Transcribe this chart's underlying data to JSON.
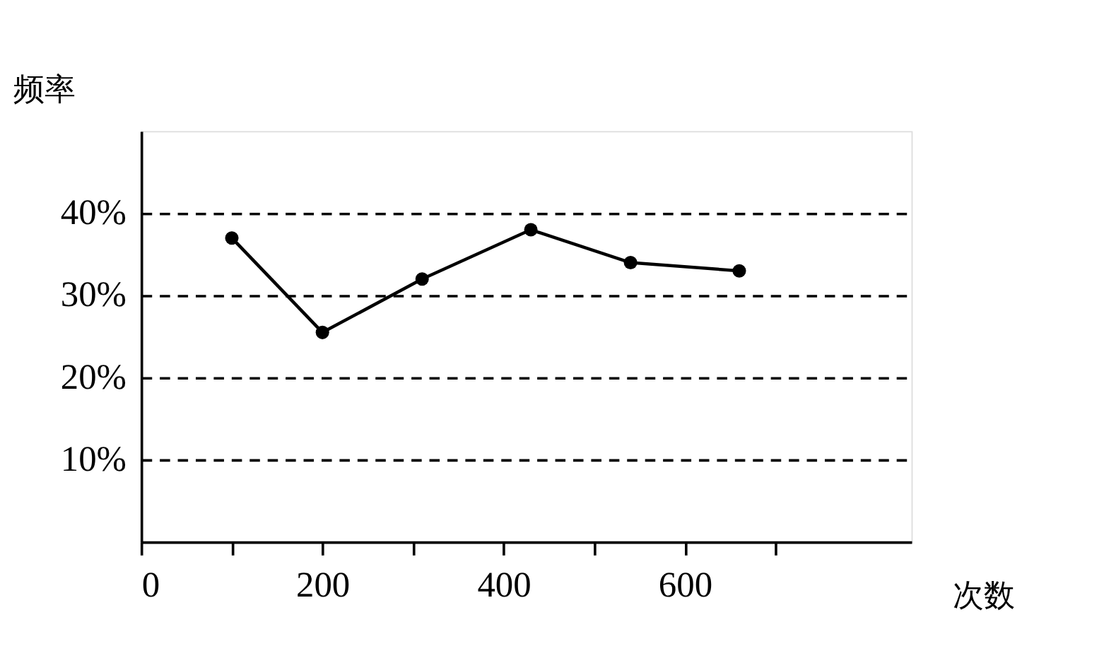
{
  "chart_data": {
    "type": "line",
    "xlabel": "次数",
    "ylabel": "频率",
    "x": [
      100,
      200,
      310,
      430,
      540,
      660
    ],
    "series": [
      {
        "color": "#000000",
        "values": [
          37,
          25.5,
          32,
          38,
          34,
          33
        ]
      }
    ],
    "xlim": [
      0,
      850
    ],
    "ylim": [
      0,
      50
    ],
    "xticks": [
      {
        "value": 0,
        "label": "0"
      },
      {
        "value": 100,
        "label": null
      },
      200,
      {
        "value": 300,
        "label": null
      },
      400,
      {
        "value": 500,
        "label": null
      },
      600,
      {
        "value": 700,
        "label": null
      }
    ],
    "yticks": [
      {
        "value": 10,
        "label": "10%"
      },
      {
        "value": 20,
        "label": "20%"
      },
      {
        "value": 30,
        "label": "30%"
      },
      {
        "value": 40,
        "label": "40%"
      }
    ],
    "grid": "y",
    "marker": "circle",
    "line_style": "solid"
  }
}
